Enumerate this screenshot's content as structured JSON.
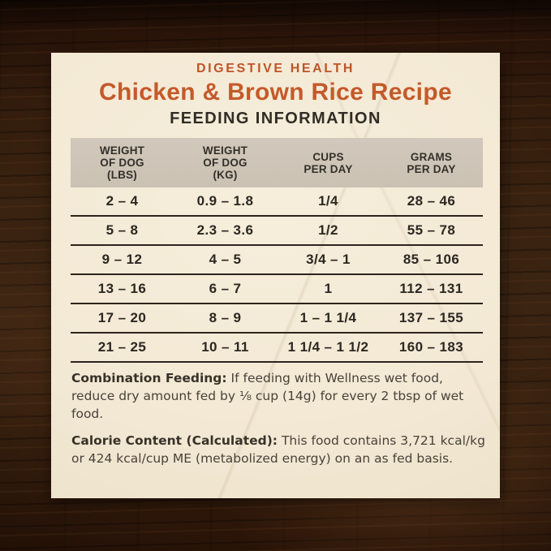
{
  "label": {
    "brand_line": "DIGESTIVE HEALTH",
    "title": "Chicken & Brown Rice Recipe",
    "subtitle": "FEEDING INFORMATION"
  },
  "table": {
    "headers": [
      [
        "WEIGHT",
        "OF DOG",
        "(LBS)"
      ],
      [
        "WEIGHT",
        "OF DOG",
        "(KG)"
      ],
      [
        "CUPS",
        "PER DAY"
      ],
      [
        "GRAMS",
        "PER DAY"
      ]
    ],
    "rows": [
      [
        "2 – 4",
        "0.9 – 1.8",
        "1/4",
        "28 – 46"
      ],
      [
        "5 – 8",
        "2.3 – 3.6",
        "1/2",
        "55 – 78"
      ],
      [
        "9 – 12",
        "4 – 5",
        "3/4 – 1",
        "85 – 106"
      ],
      [
        "13 – 16",
        "6 – 7",
        "1",
        "112 – 131"
      ],
      [
        "17 – 20",
        "8 – 9",
        "1 – 1 1/4",
        "137 – 155"
      ],
      [
        "21 – 25",
        "10 – 11",
        "1 1/4 – 1 1/2",
        "160 – 183"
      ]
    ]
  },
  "notes": [
    {
      "title": "Combination Feeding:",
      "text": "If feeding with Wellness wet food, reduce dry amount fed by ⅛ cup (14g) for every 2 tbsp of wet food."
    },
    {
      "title": "Calorie Content (Calculated):",
      "text": "This food contains 3,721 kcal/kg or 424 kcal/cup ME (metabolized energy) on an as fed basis."
    }
  ],
  "colors": {
    "accent_orange": "#c45a2a",
    "label_cream": "#f3e9d5",
    "header_band": "#cdc3b5",
    "table_text": "#2c2721",
    "rule_line": "#2d251c",
    "wood_dark": "#2c1a0e"
  }
}
